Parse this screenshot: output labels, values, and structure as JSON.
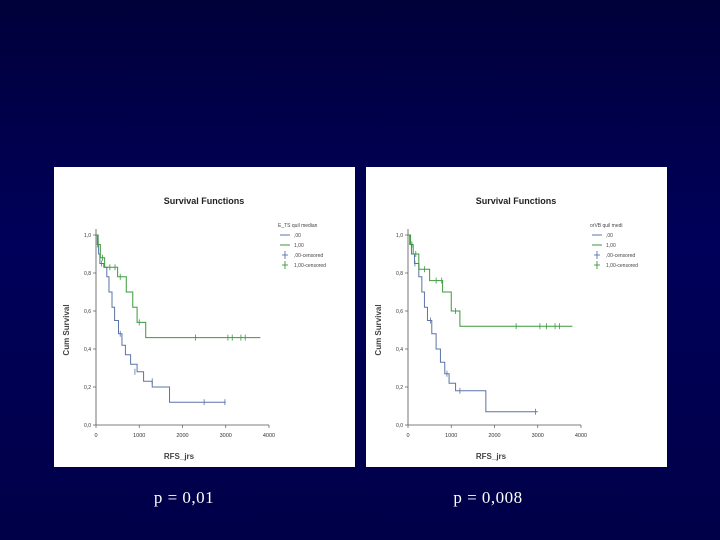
{
  "colors": {
    "background": "#000050",
    "panel": "#ffffff",
    "series_a": "#5b74a8",
    "series_b": "#3a9a3a",
    "axis": "#555555"
  },
  "chart_data": [
    {
      "type": "line",
      "step": true,
      "title": "Survival Functions",
      "xlabel": "RFS_jrs",
      "ylabel": "Cum Survival",
      "xlim": [
        0,
        4000
      ],
      "ylim": [
        0.0,
        1.0
      ],
      "xticks": [
        "0",
        "1000",
        "2000",
        "3000",
        "4000"
      ],
      "yticks": [
        "0,0",
        "0,2",
        "0,4",
        "0,6",
        "0,8",
        "1,0"
      ],
      "legend": {
        "title": "E_TS quil median",
        "placement": "top-right",
        "entries": [
          ",00",
          "1,00",
          ",00-censored",
          "1,00-censored"
        ]
      },
      "series": [
        {
          "steps": [
            [
              0,
              1.0
            ],
            [
              30,
              0.95
            ],
            [
              60,
              0.9
            ],
            [
              90,
              0.85
            ],
            [
              180,
              0.83
            ],
            [
              250,
              0.78
            ],
            [
              300,
              0.7
            ],
            [
              370,
              0.62
            ],
            [
              430,
              0.55
            ],
            [
              520,
              0.48
            ],
            [
              600,
              0.42
            ],
            [
              680,
              0.37
            ],
            [
              800,
              0.32
            ],
            [
              950,
              0.28
            ],
            [
              1100,
              0.23
            ],
            [
              1300,
              0.2
            ],
            [
              1700,
              0.12
            ],
            [
              3000,
              0.12
            ]
          ],
          "censored": [
            [
              130,
              0.85
            ],
            [
              560,
              0.48
            ],
            [
              900,
              0.28
            ],
            [
              1300,
              0.23
            ],
            [
              2500,
              0.12
            ],
            [
              2980,
              0.12
            ]
          ]
        },
        {
          "steps": [
            [
              0,
              1.0
            ],
            [
              50,
              0.95
            ],
            [
              100,
              0.88
            ],
            [
              200,
              0.83
            ],
            [
              500,
              0.78
            ],
            [
              700,
              0.7
            ],
            [
              850,
              0.62
            ],
            [
              950,
              0.54
            ],
            [
              1150,
              0.46
            ],
            [
              3800,
              0.46
            ]
          ],
          "censored": [
            [
              40,
              0.95
            ],
            [
              150,
              0.88
            ],
            [
              320,
              0.83
            ],
            [
              440,
              0.83
            ],
            [
              560,
              0.78
            ],
            [
              1000,
              0.54
            ],
            [
              2300,
              0.46
            ],
            [
              3050,
              0.46
            ],
            [
              3150,
              0.46
            ],
            [
              3350,
              0.46
            ],
            [
              3450,
              0.46
            ]
          ]
        }
      ]
    },
    {
      "type": "line",
      "step": true,
      "title": "Survival Functions",
      "xlabel": "RFS_jrs",
      "ylabel": "Cum Survival",
      "xlim": [
        0,
        4000
      ],
      "ylim": [
        0.0,
        1.0
      ],
      "xticks": [
        "0",
        "1000",
        "2000",
        "3000",
        "4000"
      ],
      "yticks": [
        "0,0",
        "0,2",
        "0,4",
        "0,6",
        "0,8",
        "1,0"
      ],
      "legend": {
        "title": "orVB quil medi",
        "placement": "top-right",
        "entries": [
          ",00",
          "1,00",
          ",00-censored",
          "1,00-censored"
        ]
      },
      "series": [
        {
          "steps": [
            [
              0,
              1.0
            ],
            [
              40,
              0.95
            ],
            [
              80,
              0.9
            ],
            [
              150,
              0.85
            ],
            [
              250,
              0.78
            ],
            [
              320,
              0.7
            ],
            [
              380,
              0.62
            ],
            [
              450,
              0.55
            ],
            [
              550,
              0.48
            ],
            [
              650,
              0.4
            ],
            [
              750,
              0.33
            ],
            [
              850,
              0.27
            ],
            [
              950,
              0.22
            ],
            [
              1100,
              0.18
            ],
            [
              1800,
              0.07
            ],
            [
              3000,
              0.07
            ]
          ],
          "censored": [
            [
              160,
              0.85
            ],
            [
              520,
              0.55
            ],
            [
              900,
              0.27
            ],
            [
              1200,
              0.18
            ],
            [
              2950,
              0.07
            ]
          ]
        },
        {
          "steps": [
            [
              0,
              1.0
            ],
            [
              60,
              0.95
            ],
            [
              120,
              0.9
            ],
            [
              250,
              0.82
            ],
            [
              500,
              0.76
            ],
            [
              800,
              0.7
            ],
            [
              1000,
              0.6
            ],
            [
              1200,
              0.52
            ],
            [
              3800,
              0.52
            ]
          ],
          "censored": [
            [
              90,
              0.95
            ],
            [
              180,
              0.9
            ],
            [
              380,
              0.82
            ],
            [
              650,
              0.76
            ],
            [
              780,
              0.76
            ],
            [
              1100,
              0.6
            ],
            [
              2500,
              0.52
            ],
            [
              3050,
              0.52
            ],
            [
              3200,
              0.52
            ],
            [
              3400,
              0.52
            ],
            [
              3500,
              0.52
            ]
          ]
        }
      ]
    }
  ],
  "pvalues": [
    "p = 0,01",
    "p = 0,008"
  ]
}
